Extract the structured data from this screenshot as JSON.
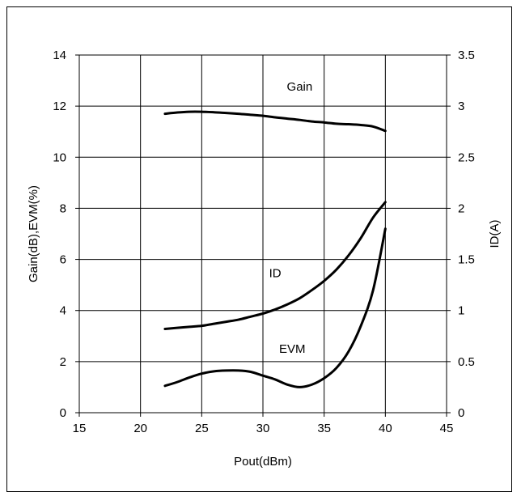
{
  "chart_data": {
    "type": "line",
    "title": "",
    "xlabel": "Pout(dBm)",
    "ylabel_left": "Gain(dB),EVM(%)",
    "ylabel_right": "ID(A)",
    "xlim": [
      15,
      45
    ],
    "ylim_left": [
      0,
      14
    ],
    "ylim_right": [
      0,
      3.5
    ],
    "x_ticks": [
      15,
      20,
      25,
      30,
      35,
      40,
      45
    ],
    "y_ticks_left": [
      0,
      2,
      4,
      6,
      8,
      10,
      12,
      14
    ],
    "y_ticks_right": [
      "0",
      "0.5",
      "1",
      "1.5",
      "2",
      "2.5",
      "3",
      "3.5"
    ],
    "grid": true,
    "series": [
      {
        "name": "Gain",
        "axis": "left",
        "x": [
          22,
          23,
          24,
          25,
          26,
          27,
          28,
          29,
          30,
          31,
          32,
          33,
          34,
          35,
          36,
          37,
          38,
          39,
          40
        ],
        "y": [
          11.7,
          11.75,
          11.78,
          11.78,
          11.76,
          11.73,
          11.7,
          11.66,
          11.62,
          11.56,
          11.51,
          11.46,
          11.4,
          11.36,
          11.31,
          11.29,
          11.26,
          11.2,
          11.03
        ]
      },
      {
        "name": "ID",
        "axis": "right",
        "x": [
          22,
          23,
          24,
          25,
          26,
          27,
          28,
          29,
          30,
          31,
          32,
          33,
          34,
          35,
          36,
          37,
          38,
          39,
          40
        ],
        "y": [
          0.82,
          0.83,
          0.84,
          0.85,
          0.87,
          0.89,
          0.91,
          0.94,
          0.97,
          1.01,
          1.06,
          1.12,
          1.2,
          1.29,
          1.4,
          1.54,
          1.71,
          1.91,
          2.06
        ]
      },
      {
        "name": "EVM",
        "axis": "left",
        "x": [
          22,
          23,
          24,
          25,
          26,
          27,
          28,
          29,
          30,
          31,
          32,
          33,
          34,
          35,
          36,
          37,
          38,
          39,
          40
        ],
        "y": [
          1.05,
          1.2,
          1.38,
          1.53,
          1.62,
          1.65,
          1.65,
          1.6,
          1.45,
          1.3,
          1.1,
          1.0,
          1.1,
          1.35,
          1.75,
          2.4,
          3.4,
          4.8,
          7.2
        ]
      }
    ],
    "annotations": [
      {
        "text": "Gain",
        "x": 33,
        "y": 12.6,
        "axis": "left"
      },
      {
        "text": "ID",
        "x": 31,
        "y": 5.3,
        "axis": "left"
      },
      {
        "text": "EVM",
        "x": 32.4,
        "y": 2.35,
        "axis": "left"
      }
    ]
  }
}
